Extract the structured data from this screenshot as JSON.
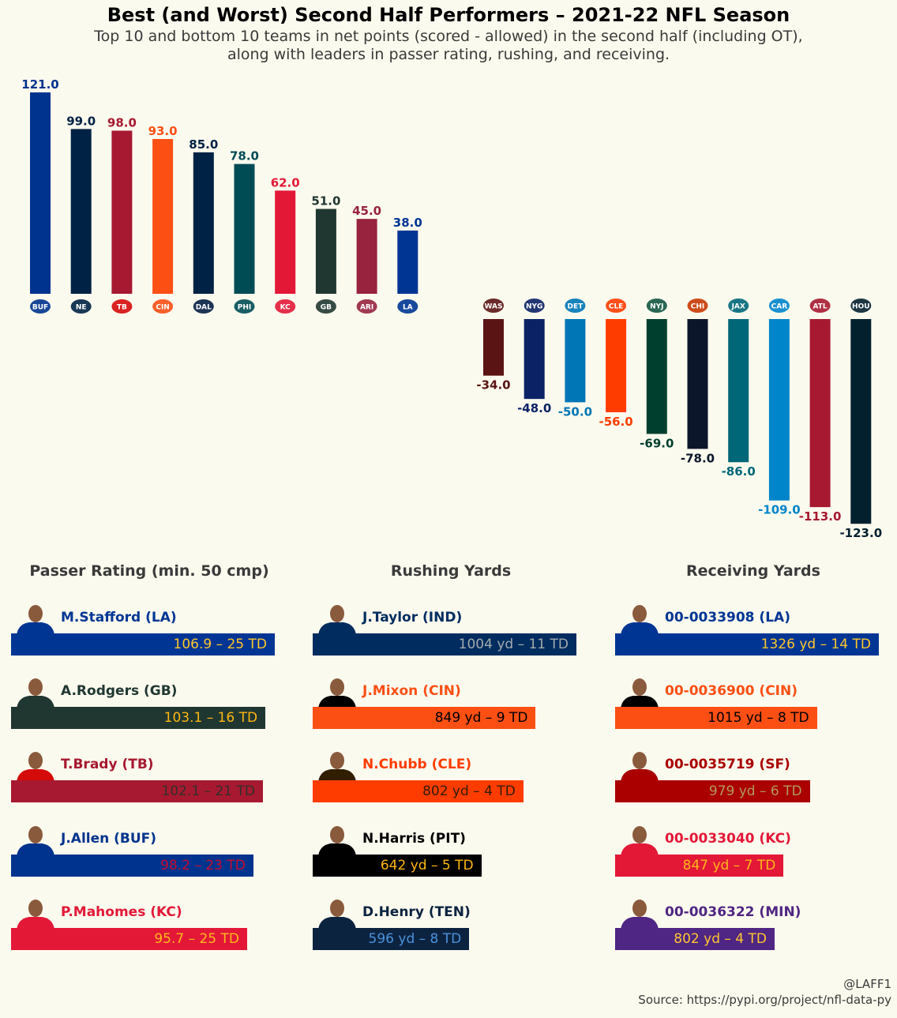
{
  "title": "Best (and Worst) Second Half Performers – 2021-22 NFL Season",
  "subtitle_line1": "Top 10 and bottom 10 teams in net points (scored - allowed) in the second half (including OT),",
  "subtitle_line2": "along with leaders in passer rating, rushing, and receiving.",
  "chart_data": {
    "type": "bar",
    "title": "Best (and Worst) Second Half Performers – 2021-22 NFL Season",
    "ylabel": "",
    "top10": {
      "categories": [
        "BUF",
        "NE",
        "TB",
        "CIN",
        "DAL",
        "PHI",
        "KC",
        "GB",
        "ARI",
        "LA"
      ],
      "values": [
        121.0,
        99.0,
        98.0,
        93.0,
        85.0,
        78.0,
        62.0,
        51.0,
        45.0,
        38.0
      ],
      "colors": [
        "#00338D",
        "#002244",
        "#A71930",
        "#FB4F14",
        "#002244",
        "#004C54",
        "#E31837",
        "#203731",
        "#97233F",
        "#003594"
      ],
      "logo_colors": [
        "#00338D",
        "#002244",
        "#D50A0A",
        "#FB4F14",
        "#041E42",
        "#004C54",
        "#E31837",
        "#203731",
        "#97233F",
        "#003594"
      ]
    },
    "bottom10": {
      "categories": [
        "WAS",
        "NYG",
        "DET",
        "CLE",
        "NYJ",
        "CHI",
        "JAX",
        "CAR",
        "ATL",
        "HOU"
      ],
      "values": [
        -34.0,
        -48.0,
        -50.0,
        -56.0,
        -69.0,
        -78.0,
        -86.0,
        -109.0,
        -113.0,
        -123.0
      ],
      "colors": [
        "#5A1414",
        "#0B2265",
        "#0076B6",
        "#FF3C00",
        "#003F2D",
        "#0B162A",
        "#006778",
        "#0085CA",
        "#A71930",
        "#03202F"
      ],
      "logo_colors": [
        "#5A1414",
        "#0B2265",
        "#0076B6",
        "#FF3C00",
        "#125740",
        "#C83803",
        "#006778",
        "#0085CA",
        "#A71930",
        "#03202F"
      ]
    }
  },
  "panels": [
    {
      "title": "Passer Rating (min. 50 cmp)",
      "leaders": [
        {
          "name": "M.Stafford (LA)",
          "value_text": "106.9 – 25 TD",
          "value": 106.9,
          "bar_color": "#003594",
          "name_color": "#003594",
          "text_color": "#FFC72C",
          "jersey": "#003594"
        },
        {
          "name": "A.Rodgers (GB)",
          "value_text": "103.1 – 16 TD",
          "value": 103.1,
          "bar_color": "#203731",
          "name_color": "#203731",
          "text_color": "#FFB612",
          "jersey": "#203731"
        },
        {
          "name": "T.Brady (TB)",
          "value_text": "102.1 – 21 TD",
          "value": 102.1,
          "bar_color": "#A71930",
          "name_color": "#A71930",
          "text_color": "#322F2B",
          "jersey": "#D50A0A"
        },
        {
          "name": "J.Allen (BUF)",
          "value_text": "98.2 – 23 TD",
          "value": 98.2,
          "bar_color": "#00338D",
          "name_color": "#00338D",
          "text_color": "#C60C30",
          "jersey": "#00338D"
        },
        {
          "name": "P.Mahomes (KC)",
          "value_text": "95.7 – 25 TD",
          "value": 95.7,
          "bar_color": "#E31837",
          "name_color": "#E31837",
          "text_color": "#FFB81C",
          "jersey": "#E31837"
        }
      ]
    },
    {
      "title": "Rushing Yards",
      "leaders": [
        {
          "name": "J.Taylor (IND)",
          "value_text": "1004 yd – 11 TD",
          "value": 1004,
          "bar_color": "#002C5F",
          "name_color": "#002C5F",
          "text_color": "#A2AAAD",
          "jersey": "#002C5F"
        },
        {
          "name": "J.Mixon (CIN)",
          "value_text": "849 yd – 9 TD",
          "value": 849,
          "bar_color": "#FB4F14",
          "name_color": "#FB4F14",
          "text_color": "#000000",
          "jersey": "#000000"
        },
        {
          "name": "N.Chubb (CLE)",
          "value_text": "802 yd – 4 TD",
          "value": 802,
          "bar_color": "#FF3C00",
          "name_color": "#FF3C00",
          "text_color": "#311D00",
          "jersey": "#311D00"
        },
        {
          "name": "N.Harris (PIT)",
          "value_text": "642 yd – 5 TD",
          "value": 642,
          "bar_color": "#000000",
          "name_color": "#000000",
          "text_color": "#FFB612",
          "jersey": "#000000"
        },
        {
          "name": "D.Henry (TEN)",
          "value_text": "596 yd – 8 TD",
          "value": 596,
          "bar_color": "#0C2340",
          "name_color": "#0C2340",
          "text_color": "#4B92DB",
          "jersey": "#0C2340"
        }
      ]
    },
    {
      "title": "Receiving Yards",
      "leaders": [
        {
          "name": "00-0033908 (LA)",
          "value_text": "1326 yd – 14 TD",
          "value": 1326,
          "bar_color": "#003594",
          "name_color": "#003594",
          "text_color": "#FFC72C",
          "jersey": "#003594"
        },
        {
          "name": "00-0036900 (CIN)",
          "value_text": "1015 yd – 8 TD",
          "value": 1015,
          "bar_color": "#FB4F14",
          "name_color": "#FB4F14",
          "text_color": "#000000",
          "jersey": "#000000"
        },
        {
          "name": "00-0035719 (SF)",
          "value_text": "979 yd – 6 TD",
          "value": 979,
          "bar_color": "#AA0000",
          "name_color": "#AA0000",
          "text_color": "#B3995D",
          "jersey": "#AA0000"
        },
        {
          "name": "00-0033040 (KC)",
          "value_text": "847 yd – 7 TD",
          "value": 847,
          "bar_color": "#E31837",
          "name_color": "#E31837",
          "text_color": "#FFB81C",
          "jersey": "#E31837"
        },
        {
          "name": "00-0036322 (MIN)",
          "value_text": "802 yd – 4 TD",
          "value": 802,
          "bar_color": "#4F2683",
          "name_color": "#4F2683",
          "text_color": "#FFC62F",
          "jersey": "#4F2683"
        }
      ]
    }
  ],
  "footer": {
    "credit": "@LAFF1",
    "source": "Source: https://pypi.org/project/nfl-data-py"
  }
}
